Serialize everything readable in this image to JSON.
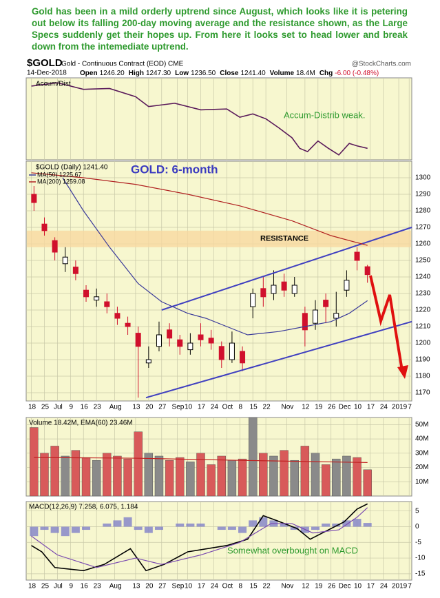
{
  "commentary": "Gold has been in a mild orderly uptrend since August, which looks like it is petering out below its falling 200-day moving average and the resistance shown, as the Large Specs suddenly get their hopes up. From here it looks set to head lower and break down from the intemediate uptrend.",
  "header": {
    "symbol": "$GOLD",
    "description": "Gold - Continuous Contract (EOD) CME",
    "credit": "@StockCharts.com",
    "date": "14-Dec-2018",
    "quote": [
      {
        "label": "Open",
        "value": "1246.20"
      },
      {
        "label": "High",
        "value": "1247.30"
      },
      {
        "label": "Low",
        "value": "1236.50"
      },
      {
        "label": "Close",
        "value": "1241.40"
      },
      {
        "label": "Volume",
        "value": "18.4M"
      },
      {
        "label": "Chg",
        "value": "-6.00 (-0.48%)"
      }
    ]
  },
  "chart_data": [
    {
      "type": "line",
      "title": "Accum/Dist",
      "annotation": "Accum-Distrib weak.",
      "xlim": [
        -2,
        146
      ],
      "ylim": [
        0,
        100
      ],
      "series": [
        {
          "color": "#5a1a5a",
          "x": [
            0,
            10,
            20,
            30,
            40,
            45,
            55,
            65,
            75,
            80,
            85,
            90,
            95,
            100,
            103,
            106,
            110,
            114,
            118,
            122,
            125,
            129
          ],
          "values": [
            90,
            94,
            86,
            87,
            77,
            65,
            69,
            61,
            62,
            52,
            56,
            50,
            39,
            27,
            14,
            10,
            23,
            14,
            6,
            20,
            17,
            14
          ]
        }
      ]
    },
    {
      "type": "candlestick",
      "title": "GOLD: 6-month",
      "legend_title": "$GOLD (Daily) 1241.40",
      "annotation": "RESISTANCE",
      "xlim": [
        -2,
        146
      ],
      "ylim": [
        1165,
        1310
      ],
      "yticks": [
        1170,
        1180,
        1190,
        1200,
        1210,
        1220,
        1230,
        1240,
        1250,
        1260,
        1270,
        1280,
        1290,
        1300
      ],
      "grid": true,
      "xticks": [
        {
          "value": 0,
          "label": "18"
        },
        {
          "value": 5,
          "label": "25"
        },
        {
          "value": 10,
          "label": "Jul"
        },
        {
          "value": 15,
          "label": "9"
        },
        {
          "value": 20,
          "label": "16"
        },
        {
          "value": 25,
          "label": "23"
        },
        {
          "value": 32,
          "label": "Aug"
        },
        {
          "value": 40,
          "label": "13"
        },
        {
          "value": 45,
          "label": "20"
        },
        {
          "value": 50,
          "label": "27"
        },
        {
          "value": 56,
          "label": "Sep"
        },
        {
          "value": 60,
          "label": "10"
        },
        {
          "value": 65,
          "label": "17"
        },
        {
          "value": 70,
          "label": "24"
        },
        {
          "value": 75,
          "label": "Oct"
        },
        {
          "value": 80,
          "label": "8"
        },
        {
          "value": 85,
          "label": "15"
        },
        {
          "value": 90,
          "label": "22"
        },
        {
          "value": 98,
          "label": "Nov"
        },
        {
          "value": 105,
          "label": "12"
        },
        {
          "value": 110,
          "label": "19"
        },
        {
          "value": 115,
          "label": "26"
        },
        {
          "value": 120,
          "label": "Dec"
        },
        {
          "value": 125,
          "label": "10"
        },
        {
          "value": 130,
          "label": "17"
        },
        {
          "value": 135,
          "label": "24"
        },
        {
          "value": 141,
          "label": "2019"
        },
        {
          "value": 145,
          "label": "7"
        }
      ],
      "up_color": "#000000",
      "down_color": "#d0102c",
      "x": [
        1,
        5,
        9,
        13,
        17,
        21,
        25,
        29,
        33,
        37,
        41,
        45,
        49,
        53,
        57,
        61,
        65,
        69,
        73,
        77,
        81,
        85,
        89,
        93,
        97,
        101,
        105,
        109,
        113,
        117,
        121,
        125,
        129
      ],
      "open": [
        1290,
        1272,
        1262,
        1248,
        1246,
        1232,
        1226,
        1225,
        1218,
        1212,
        1206,
        1188,
        1198,
        1208,
        1202,
        1196,
        1205,
        1203,
        1198,
        1190,
        1195,
        1222,
        1233,
        1230,
        1237,
        1230,
        1218,
        1212,
        1226,
        1215,
        1232,
        1255,
        1246.2
      ],
      "high": [
        1295,
        1276,
        1264,
        1258,
        1250,
        1235,
        1233,
        1230,
        1222,
        1216,
        1210,
        1198,
        1213,
        1212,
        1205,
        1206,
        1212,
        1208,
        1201,
        1207,
        1198,
        1233,
        1240,
        1244,
        1242,
        1240,
        1222,
        1226,
        1230,
        1231,
        1244,
        1258,
        1247.3
      ],
      "low": [
        1280,
        1265,
        1250,
        1243,
        1238,
        1225,
        1222,
        1218,
        1211,
        1205,
        1167,
        1185,
        1195,
        1198,
        1193,
        1193,
        1198,
        1196,
        1185,
        1188,
        1183,
        1215,
        1222,
        1226,
        1228,
        1228,
        1198,
        1208,
        1212,
        1210,
        1228,
        1244,
        1236.5
      ],
      "close": [
        1285,
        1268,
        1255,
        1252,
        1242,
        1228,
        1228,
        1222,
        1215,
        1210,
        1198,
        1190,
        1205,
        1203,
        1198,
        1200,
        1202,
        1200,
        1190,
        1200,
        1188,
        1230,
        1228,
        1235,
        1232,
        1235,
        1208,
        1220,
        1222,
        1218,
        1238,
        1250,
        1241.4
      ],
      "series": [
        {
          "name": "MA(50) 1225.67",
          "color": "#3a3a9a",
          "x": [
            12,
            20,
            30,
            41,
            50,
            60,
            67,
            75,
            83,
            95,
            105,
            115,
            122,
            129
          ],
          "values": [
            1300,
            1280,
            1258,
            1236,
            1225,
            1218,
            1215,
            1210,
            1205,
            1207,
            1210,
            1213,
            1218,
            1225.67
          ]
        },
        {
          "name": "MA(200) 1259.08",
          "color": "#b02020",
          "x": [
            0,
            20,
            40,
            60,
            80,
            100,
            115,
            129
          ],
          "values": [
            1303,
            1300,
            1296,
            1290,
            1283,
            1274,
            1265,
            1259.08
          ]
        }
      ],
      "trendlines": [
        {
          "color": "#4040c0",
          "x": [
            50,
            146
          ],
          "y": [
            1220,
            1270
          ]
        },
        {
          "color": "#4040c0",
          "x": [
            44,
            146
          ],
          "y": [
            1167,
            1213
          ]
        }
      ],
      "resistance_band": {
        "color": "#f8d8a0",
        "y": [
          1258,
          1268
        ]
      }
    },
    {
      "type": "bar",
      "legend": "Volume 18.42M, EMA(60) 23.46M",
      "xlim": [
        -2,
        146
      ],
      "ylim": [
        0,
        55000000
      ],
      "grid": true,
      "yticks": [
        {
          "value": 10000000,
          "label": "10M"
        },
        {
          "value": 20000000,
          "label": "20M"
        },
        {
          "value": 30000000,
          "label": "30M"
        },
        {
          "value": 40000000,
          "label": "40M"
        },
        {
          "value": 50000000,
          "label": "50M"
        }
      ],
      "up_color": "#8a8a8a",
      "down_color": "#d85a5a",
      "x": [
        1,
        5,
        9,
        13,
        17,
        21,
        25,
        29,
        33,
        37,
        41,
        45,
        49,
        53,
        57,
        61,
        65,
        69,
        73,
        77,
        81,
        85,
        89,
        93,
        97,
        101,
        105,
        109,
        113,
        117,
        121,
        125,
        129
      ],
      "values": [
        48000000,
        30000000,
        35000000,
        28000000,
        32000000,
        27000000,
        25000000,
        30000000,
        28000000,
        26000000,
        45000000,
        30000000,
        28000000,
        25000000,
        27000000,
        24000000,
        30000000,
        22000000,
        28000000,
        25000000,
        26000000,
        55000000,
        30000000,
        28000000,
        32000000,
        25000000,
        35000000,
        30000000,
        22000000,
        26000000,
        28000000,
        27000000,
        18420000
      ],
      "series": [
        {
          "color": "#c02020",
          "x": [
            1,
            40,
            80,
            129
          ],
          "values": [
            27000000,
            26500000,
            25000000,
            23460000
          ]
        }
      ]
    },
    {
      "type": "line",
      "legend": "MACD(12,26,9) 7.258, 6.075, 1.184",
      "annotation": "Somewhat overbought on MACD",
      "xlim": [
        -2,
        146
      ],
      "ylim": [
        -17,
        8
      ],
      "yticks": [
        -15,
        -10,
        -5,
        0,
        5
      ],
      "grid": true,
      "xticks": [
        {
          "value": 0,
          "label": "18"
        },
        {
          "value": 5,
          "label": "25"
        },
        {
          "value": 10,
          "label": "Jul"
        },
        {
          "value": 15,
          "label": "9"
        },
        {
          "value": 20,
          "label": "16"
        },
        {
          "value": 25,
          "label": "23"
        },
        {
          "value": 32,
          "label": "Aug"
        },
        {
          "value": 40,
          "label": "13"
        },
        {
          "value": 45,
          "label": "20"
        },
        {
          "value": 50,
          "label": "27"
        },
        {
          "value": 56,
          "label": "Sep"
        },
        {
          "value": 60,
          "label": "10"
        },
        {
          "value": 65,
          "label": "17"
        },
        {
          "value": 70,
          "label": "24"
        },
        {
          "value": 75,
          "label": "Oct"
        },
        {
          "value": 80,
          "label": "8"
        },
        {
          "value": 85,
          "label": "15"
        },
        {
          "value": 90,
          "label": "22"
        },
        {
          "value": 98,
          "label": "Nov"
        },
        {
          "value": 105,
          "label": "12"
        },
        {
          "value": 110,
          "label": "19"
        },
        {
          "value": 115,
          "label": "26"
        },
        {
          "value": 120,
          "label": "Dec"
        },
        {
          "value": 125,
          "label": "10"
        },
        {
          "value": 130,
          "label": "17"
        },
        {
          "value": 135,
          "label": "24"
        },
        {
          "value": 141,
          "label": "2019"
        },
        {
          "value": 145,
          "label": "7"
        }
      ],
      "histogram": {
        "color": "#8080c8",
        "x": [
          1,
          5,
          9,
          13,
          17,
          21,
          25,
          29,
          33,
          37,
          41,
          45,
          49,
          53,
          57,
          61,
          65,
          69,
          73,
          77,
          81,
          85,
          89,
          93,
          97,
          101,
          105,
          109,
          113,
          117,
          121,
          125,
          129
        ],
        "values": [
          -3,
          -1,
          -2,
          -3,
          -2,
          -1,
          0,
          1,
          2,
          3,
          -1,
          -2,
          -1,
          0,
          1,
          1,
          1,
          0,
          -1,
          -1,
          -2,
          2,
          3,
          2,
          1,
          -1,
          -2,
          -1,
          1,
          1,
          2,
          2.5,
          1.184
        ]
      },
      "series": [
        {
          "color": "#000000",
          "x": [
            0,
            4,
            9,
            20,
            28,
            38,
            44,
            51,
            60,
            75,
            83,
            89,
            94,
            102,
            107,
            115,
            120,
            125,
            129
          ],
          "values": [
            -6,
            -8,
            -13,
            -14,
            -12,
            -7,
            -14,
            -12,
            -8,
            -6,
            -4,
            3.5,
            2,
            -0.6,
            -4,
            -0.6,
            1.5,
            5.6,
            7.258
          ]
        },
        {
          "color": "#7a4ab0",
          "x": [
            0,
            10,
            25,
            40,
            50,
            65,
            80,
            92,
            100,
            108,
            118,
            125,
            129
          ],
          "values": [
            -3,
            -9,
            -13,
            -10,
            -12,
            -9,
            -5,
            1,
            1,
            -2,
            -1,
            3,
            6.075
          ]
        }
      ]
    }
  ]
}
